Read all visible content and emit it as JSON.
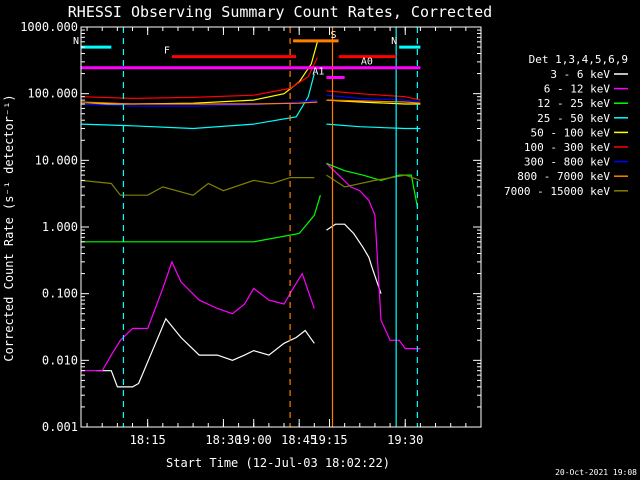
{
  "chart_data": {
    "type": "line",
    "title": "RHESSI Observing Summary Count Rates, Corrected",
    "xlabel": "Start Time (12-Jul-03 18:02:22)",
    "ylabel": "Corrected Count Rate (s⁻¹ detector⁻¹)",
    "yscale": "log",
    "ylim": [
      0.001,
      1000
    ],
    "y_ticks": [
      "1000.000",
      "100.000",
      "10.000",
      "1.000",
      "0.100",
      "0.010",
      "0.001"
    ],
    "xlim_minutes": [
      18.03,
      19.75
    ],
    "x_ticks": [
      {
        "label": "18:15",
        "t": 18.25
      },
      {
        "label": "18:30",
        "t": 18.5
      },
      {
        "label": "18:45",
        "t": 18.75
      },
      {
        "label": "19:00",
        "t": 19.0
      },
      {
        "label": "19:15",
        "t": 19.25
      },
      {
        "label": "19:30",
        "t": 19.5
      }
    ],
    "legend_header": "Det 1,3,4,5,6,9",
    "series": [
      {
        "name": "3 - 6 keV",
        "color": "#ffffff",
        "t": [
          18.08,
          18.13,
          18.15,
          18.2,
          18.22,
          18.28,
          18.31,
          18.36,
          18.42,
          18.48,
          18.53,
          18.57,
          18.6,
          18.65,
          18.7,
          18.74,
          18.77,
          18.8,
          19.24,
          19.27,
          19.3,
          19.33,
          19.36,
          19.38,
          19.39,
          19.42
        ],
        "v": [
          0.007,
          0.007,
          0.004,
          0.004,
          0.0045,
          0.02,
          0.042,
          0.022,
          0.012,
          0.012,
          0.01,
          0.012,
          0.014,
          0.012,
          0.018,
          0.022,
          0.028,
          0.018,
          0.9,
          1.1,
          1.1,
          0.8,
          0.5,
          0.35,
          0.25,
          0.1
        ]
      },
      {
        "name": "6 - 12 keV",
        "color": "#ff00ff",
        "t": [
          18.03,
          18.1,
          18.13,
          18.16,
          18.2,
          18.25,
          18.3,
          18.33,
          18.36,
          18.42,
          18.48,
          18.53,
          18.57,
          18.6,
          18.65,
          18.7,
          18.73,
          18.76,
          18.8,
          19.24,
          19.28,
          19.32,
          19.35,
          19.38,
          19.4,
          19.42,
          19.45,
          19.48,
          19.5,
          19.55
        ],
        "v": [
          0.007,
          0.007,
          0.012,
          0.02,
          0.03,
          0.03,
          0.12,
          0.3,
          0.15,
          0.08,
          0.06,
          0.05,
          0.07,
          0.12,
          0.08,
          0.07,
          0.12,
          0.2,
          0.06,
          9,
          6,
          4,
          3.5,
          2.5,
          1.5,
          0.04,
          0.02,
          0.02,
          0.015,
          0.015
        ]
      },
      {
        "name": "12 - 25 keV",
        "color": "#00ff00",
        "t": [
          18.03,
          18.2,
          18.4,
          18.6,
          18.75,
          18.8,
          18.82,
          19.24,
          19.3,
          19.36,
          19.42,
          19.48,
          19.52,
          19.54
        ],
        "v": [
          0.6,
          0.6,
          0.6,
          0.6,
          0.8,
          1.5,
          3,
          9,
          7,
          6,
          5,
          6,
          6,
          2
        ]
      },
      {
        "name": "25 - 50 keV",
        "color": "#00ffff",
        "t": [
          18.03,
          18.2,
          18.4,
          18.6,
          18.74,
          18.78,
          18.8,
          19.24,
          19.35,
          19.5,
          19.55
        ],
        "v": [
          35,
          33,
          30,
          35,
          45,
          90,
          200,
          35,
          32,
          30,
          30
        ]
      },
      {
        "name": "50 - 100 keV",
        "color": "#ffff00",
        "t": [
          18.03,
          18.2,
          18.4,
          18.6,
          18.7,
          18.75,
          18.79,
          18.81,
          19.24,
          19.35,
          19.5,
          19.55
        ],
        "v": [
          70,
          70,
          72,
          80,
          100,
          150,
          280,
          600,
          80,
          75,
          70,
          70
        ]
      },
      {
        "name": "100 - 300 keV",
        "color": "#ff0000",
        "t": [
          18.03,
          18.2,
          18.4,
          18.6,
          18.72,
          18.78,
          18.81,
          19.24,
          19.35,
          19.5,
          19.55
        ],
        "v": [
          90,
          85,
          88,
          95,
          120,
          180,
          350,
          110,
          100,
          90,
          80
        ]
      },
      {
        "name": "300 - 800 keV",
        "color": "#0000ff",
        "t": [
          18.03,
          18.2,
          18.4,
          18.6,
          18.75,
          18.81,
          19.24,
          19.35,
          19.5,
          19.55
        ],
        "v": [
          70,
          65,
          65,
          68,
          75,
          80,
          95,
          85,
          80,
          75
        ]
      },
      {
        "name": "800 - 7000 keV",
        "color": "#ff8000",
        "t": [
          18.03,
          18.2,
          18.4,
          18.6,
          18.75,
          18.81,
          19.24,
          19.35,
          19.5,
          19.55
        ],
        "v": [
          75,
          70,
          70,
          70,
          72,
          75,
          80,
          78,
          75,
          72
        ]
      },
      {
        "name": "7000 - 15000 keV",
        "color": "#808000",
        "t": [
          18.03,
          18.13,
          18.16,
          18.25,
          18.3,
          18.4,
          18.45,
          18.5,
          18.6,
          18.66,
          18.72,
          18.8,
          19.24,
          19.3,
          19.4,
          19.5,
          19.55
        ],
        "v": [
          5,
          4.5,
          3,
          3,
          4,
          3,
          4.5,
          3.5,
          5,
          4.5,
          5.5,
          5.5,
          6,
          4,
          5,
          6,
          5
        ]
      }
    ],
    "flag_bars": [
      {
        "label": "N",
        "color": "#00ffff",
        "t0": 18.03,
        "t1": 18.13,
        "value": 500
      },
      {
        "label": "N",
        "color": "#00ffff",
        "t0": 19.48,
        "t1": 19.55,
        "value": 500
      },
      {
        "label": "F",
        "color": "#ff0000",
        "t0": 18.33,
        "t1": 18.74,
        "value": 360
      },
      {
        "label": "",
        "color": "#ff0000",
        "t0": 19.28,
        "t1": 19.47,
        "value": 360
      },
      {
        "label": "S",
        "color": "#ff8000",
        "t0": 18.88,
        "t1": 19.13,
        "value": 620
      },
      {
        "label": "",
        "color": "#ff00ff",
        "t0": 18.03,
        "t1": 19.55,
        "value": 245
      },
      {
        "label": "A0",
        "color": "#ff00ff",
        "t0": 19.4,
        "t1": 19.4,
        "value": 245
      },
      {
        "label": "A1",
        "color": "#ff00ff",
        "t0": 19.24,
        "t1": 19.3,
        "value": 175
      }
    ],
    "vertical_markers": [
      {
        "color": "#00ffff",
        "style": "dashed",
        "t": 18.17
      },
      {
        "color": "#ff8000",
        "style": "solid",
        "t": 18.86
      },
      {
        "color": "#ff8000",
        "style": "dashed",
        "t": 19.12
      },
      {
        "color": "#00ffff",
        "style": "solid",
        "t": 19.47
      },
      {
        "color": "#00ffff",
        "style": "dashed",
        "t": 19.54
      }
    ],
    "footer_date": "20-Oct-2021 19:08"
  }
}
